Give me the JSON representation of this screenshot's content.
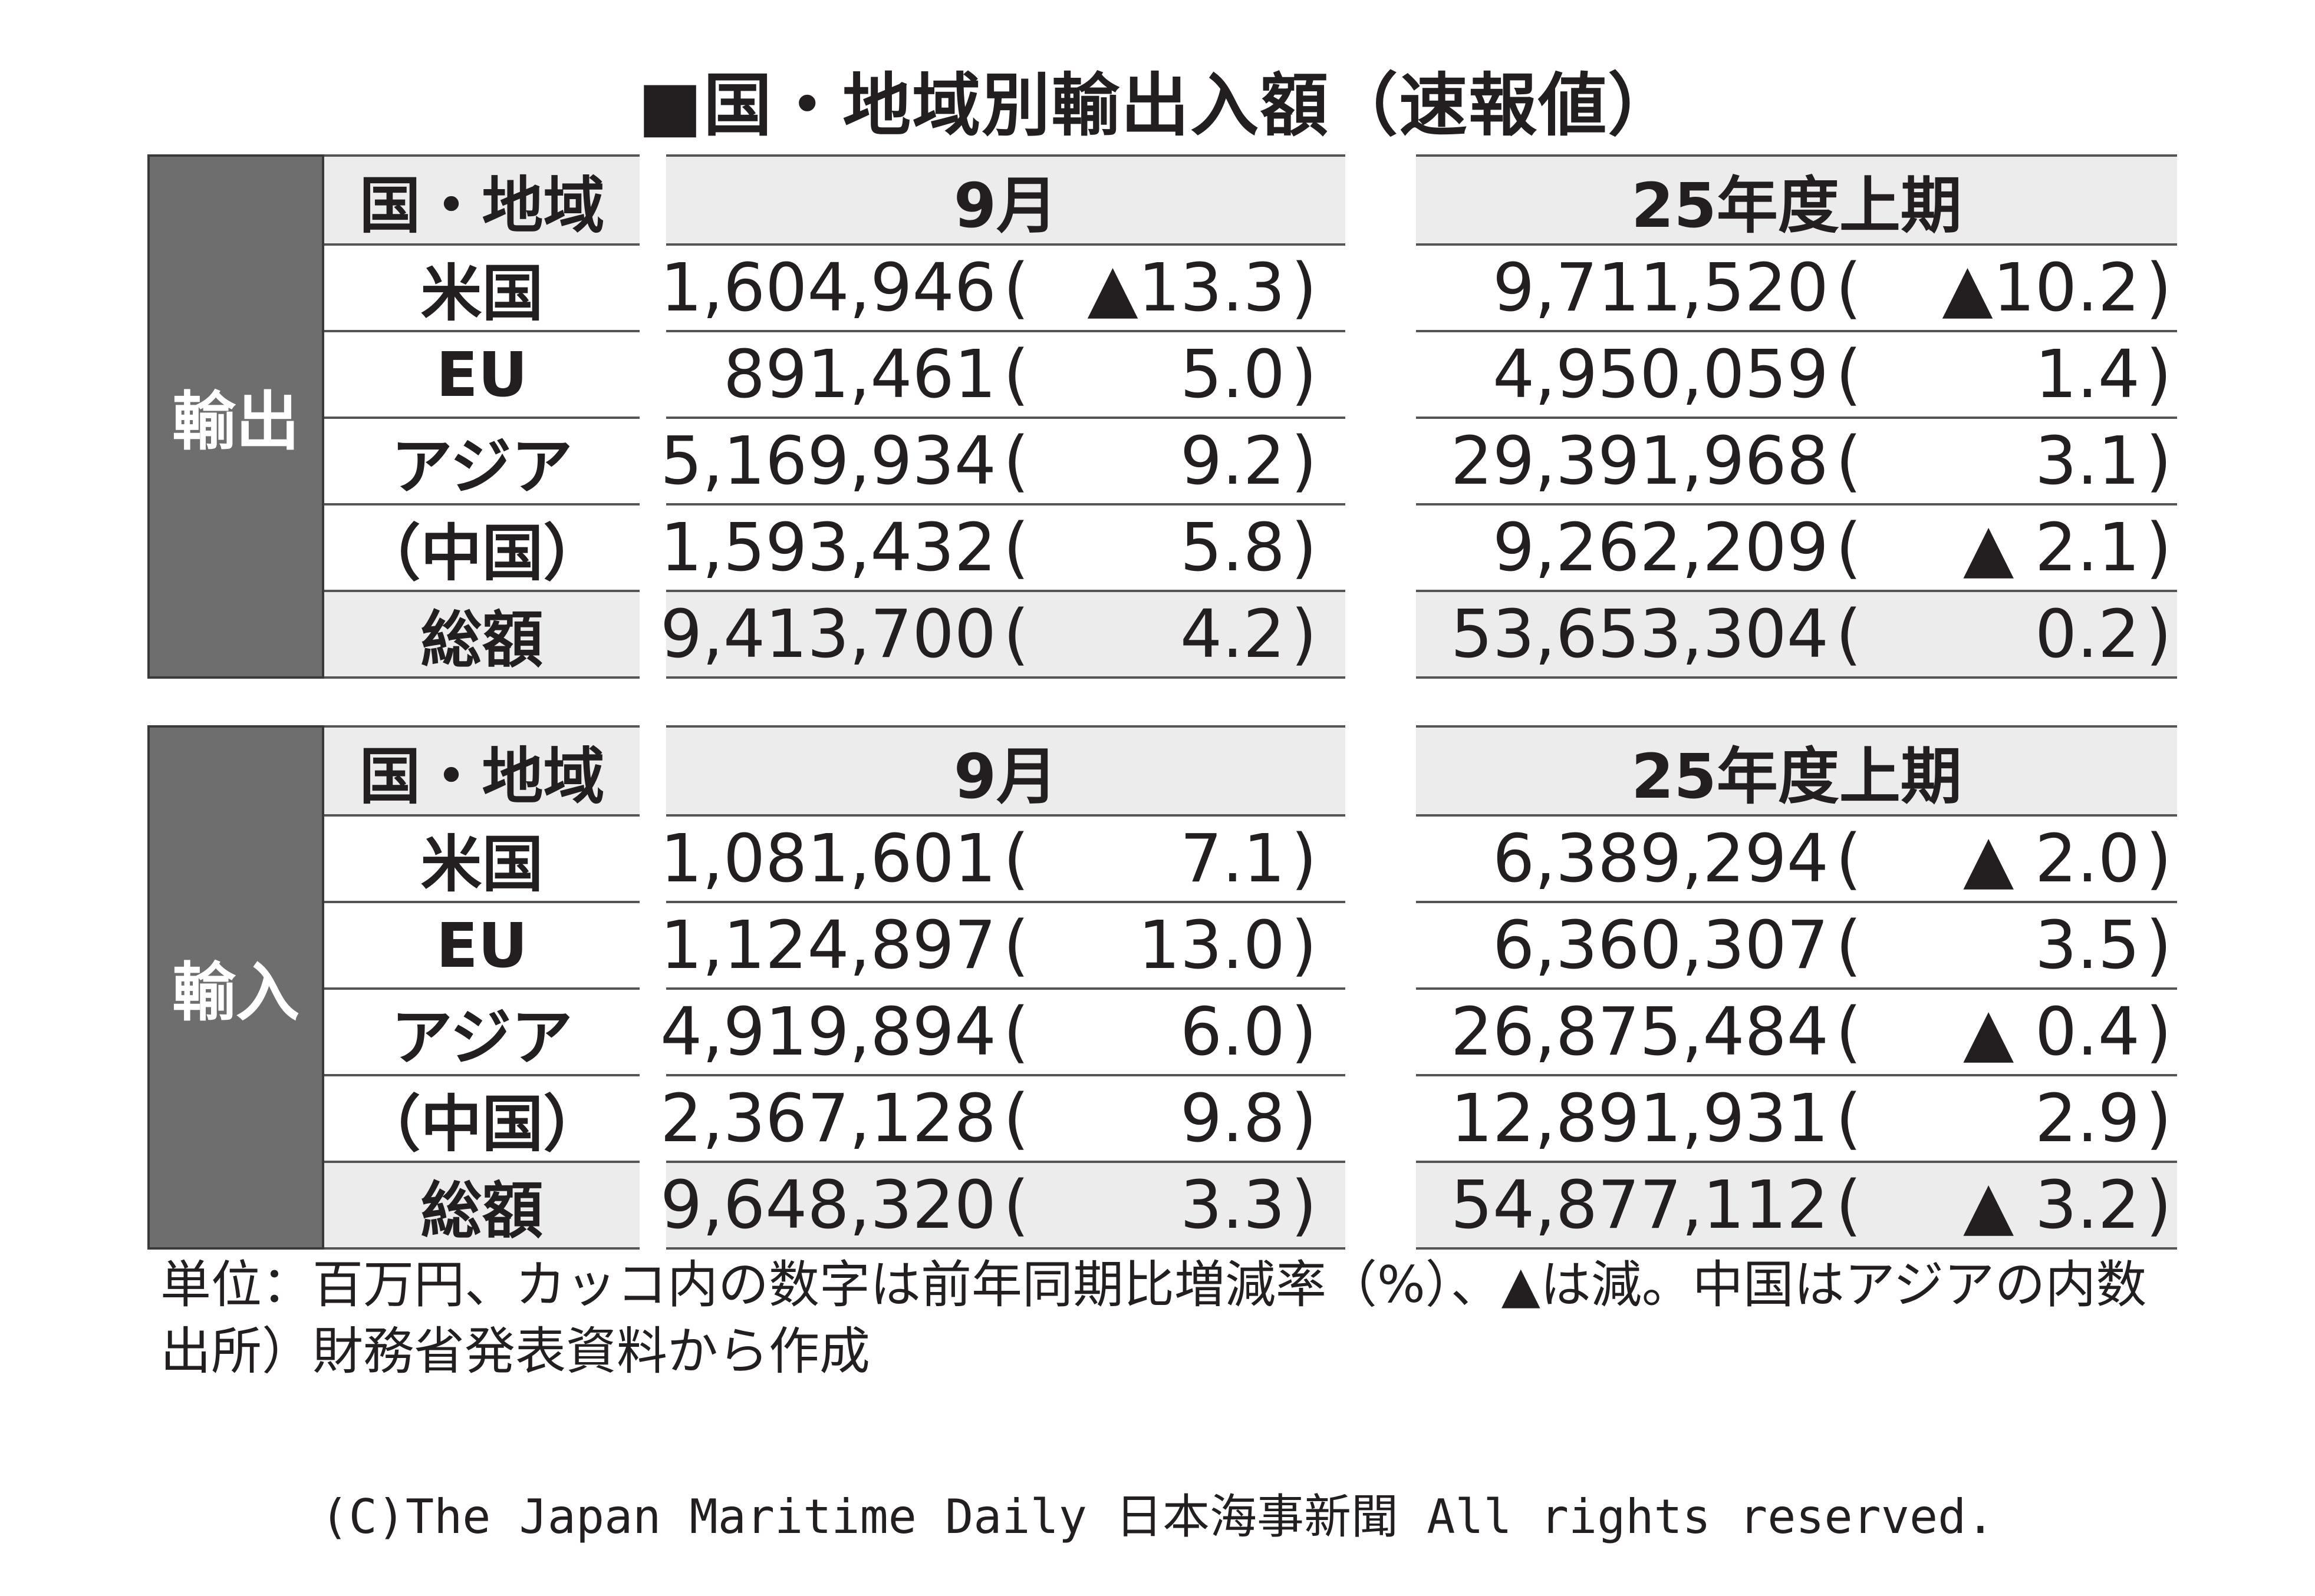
{
  "title": "■国・地域別輸出入額（速報値）",
  "headers": {
    "region": "国・地域",
    "month": "9月",
    "fy": "25年度上期"
  },
  "sections": [
    {
      "label": "輸出",
      "rows": [
        {
          "region": "米国",
          "month_value": "1,604,946",
          "month_pct": "▲13.3",
          "fy_value": "9,711,520",
          "fy_pct": "▲10.2"
        },
        {
          "region": "EU",
          "month_value": "891,461",
          "month_pct": "5.0",
          "fy_value": "4,950,059",
          "fy_pct": "1.4"
        },
        {
          "region": "アジア",
          "month_value": "5,169,934",
          "month_pct": "9.2",
          "fy_value": "29,391,968",
          "fy_pct": "3.1"
        },
        {
          "region": "（中国）",
          "month_value": "1,593,432",
          "month_pct": "5.8",
          "fy_value": "9,262,209",
          "fy_pct": "▲ 2.1"
        },
        {
          "region": "総額",
          "month_value": "9,413,700",
          "month_pct": "4.2",
          "fy_value": "53,653,304",
          "fy_pct": "0.2"
        }
      ]
    },
    {
      "label": "輸入",
      "rows": [
        {
          "region": "米国",
          "month_value": "1,081,601",
          "month_pct": "7.1",
          "fy_value": "6,389,294",
          "fy_pct": "▲ 2.0"
        },
        {
          "region": "EU",
          "month_value": "1,124,897",
          "month_pct": "13.0",
          "fy_value": "6,360,307",
          "fy_pct": "3.5"
        },
        {
          "region": "アジア",
          "month_value": "4,919,894",
          "month_pct": "6.0",
          "fy_value": "26,875,484",
          "fy_pct": "▲ 0.4"
        },
        {
          "region": "（中国）",
          "month_value": "2,367,128",
          "month_pct": "9.8",
          "fy_value": "12,891,931",
          "fy_pct": "2.9"
        },
        {
          "region": "総額",
          "month_value": "9,648,320",
          "month_pct": "3.3",
          "fy_value": "54,877,112",
          "fy_pct": "▲ 3.2"
        }
      ]
    }
  ],
  "paren_open": "(",
  "paren_close": ")",
  "notes": [
    "単位：百万円、カッコ内の数字は前年同期比増減率（%）、▲は減。中国はアジアの内数",
    "出所）財務省発表資料から作成"
  ],
  "copyright": "(C)The Japan Maritime Daily 日本海事新聞 All rights reserved."
}
